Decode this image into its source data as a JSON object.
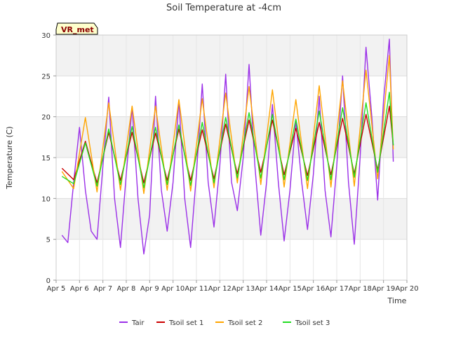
{
  "chart_data": {
    "type": "line",
    "title": "Soil Temperature at -4cm",
    "xlabel": "Time",
    "ylabel": "Temperature (C)",
    "ylim": [
      0,
      30
    ],
    "xlim": [
      "2024-04-05",
      "2024-04-20"
    ],
    "y_ticks": [
      0,
      5,
      10,
      15,
      20,
      25,
      30
    ],
    "x_ticks": [
      "Apr 5",
      "Apr 6",
      "Apr 7",
      "Apr 8",
      "Apr 9",
      "Apr 10",
      "Apr 11",
      "Apr 12",
      "Apr 13",
      "Apr 14",
      "Apr 15",
      "Apr 16",
      "Apr 17",
      "Apr 18",
      "Apr 19",
      "Apr 20"
    ],
    "grid": true,
    "legend_position": "bottom",
    "annotation": "VR_met",
    "series": [
      {
        "name": "Tair",
        "color": "#9b30e8",
        "x": [
          "2024-04-05T06:00",
          "2024-04-05T12:00",
          "2024-04-05T18:00",
          "2024-04-06T00:00",
          "2024-04-06T06:00",
          "2024-04-06T12:00",
          "2024-04-06T18:00",
          "2024-04-07T00:00",
          "2024-04-07T06:00",
          "2024-04-07T12:00",
          "2024-04-07T18:00",
          "2024-04-08T00:00",
          "2024-04-08T06:00",
          "2024-04-08T12:00",
          "2024-04-08T18:00",
          "2024-04-09T00:00",
          "2024-04-09T06:00",
          "2024-04-09T12:00",
          "2024-04-09T18:00",
          "2024-04-10T00:00",
          "2024-04-10T06:00",
          "2024-04-10T12:00",
          "2024-04-10T18:00",
          "2024-04-11T00:00",
          "2024-04-11T06:00",
          "2024-04-11T12:00",
          "2024-04-11T18:00",
          "2024-04-12T00:00",
          "2024-04-12T06:00",
          "2024-04-12T12:00",
          "2024-04-12T18:00",
          "2024-04-13T00:00",
          "2024-04-13T06:00",
          "2024-04-13T12:00",
          "2024-04-13T18:00",
          "2024-04-14T00:00",
          "2024-04-14T06:00",
          "2024-04-14T12:00",
          "2024-04-14T18:00",
          "2024-04-15T00:00",
          "2024-04-15T06:00",
          "2024-04-15T12:00",
          "2024-04-15T18:00",
          "2024-04-16T00:00",
          "2024-04-16T06:00",
          "2024-04-16T12:00",
          "2024-04-16T18:00",
          "2024-04-17T00:00",
          "2024-04-17T06:00",
          "2024-04-17T12:00",
          "2024-04-17T18:00",
          "2024-04-18T00:00",
          "2024-04-18T06:00",
          "2024-04-18T12:00",
          "2024-04-18T18:00",
          "2024-04-19T00:00",
          "2024-04-19T06:00",
          "2024-04-19T10:00"
        ],
        "values": [
          5.5,
          4.6,
          12.0,
          18.7,
          11.0,
          6.0,
          5.0,
          14.0,
          22.4,
          10.0,
          4.0,
          13.0,
          21.2,
          10.0,
          3.2,
          8.0,
          22.5,
          11.0,
          6.0,
          12.0,
          22.0,
          10.0,
          4.0,
          13.0,
          24.0,
          12.0,
          6.5,
          14.0,
          25.2,
          12.0,
          8.5,
          15.0,
          26.4,
          14.0,
          5.5,
          12.0,
          21.5,
          12.0,
          4.8,
          11.0,
          19.5,
          12.0,
          6.2,
          13.0,
          22.5,
          11.0,
          5.3,
          14.0,
          25.0,
          12.0,
          4.4,
          15.0,
          28.5,
          20.0,
          9.8,
          22.0,
          29.5,
          14.5
        ]
      },
      {
        "name": "Tsoil set 1",
        "color": "#cc0000",
        "x": [
          "2024-04-05T06:00",
          "2024-04-05T18:00",
          "2024-04-06T06:00",
          "2024-04-06T18:00",
          "2024-04-07T06:00",
          "2024-04-07T18:00",
          "2024-04-08T06:00",
          "2024-04-08T18:00",
          "2024-04-09T06:00",
          "2024-04-09T18:00",
          "2024-04-10T06:00",
          "2024-04-10T18:00",
          "2024-04-11T06:00",
          "2024-04-11T18:00",
          "2024-04-12T06:00",
          "2024-04-12T18:00",
          "2024-04-13T06:00",
          "2024-04-13T18:00",
          "2024-04-14T06:00",
          "2024-04-14T18:00",
          "2024-04-15T06:00",
          "2024-04-15T18:00",
          "2024-04-16T06:00",
          "2024-04-16T18:00",
          "2024-04-17T06:00",
          "2024-04-17T18:00",
          "2024-04-18T06:00",
          "2024-04-18T18:00",
          "2024-04-19T06:00",
          "2024-04-19T10:00"
        ],
        "values": [
          13.7,
          12.3,
          17.0,
          11.9,
          18.1,
          12.2,
          18.1,
          11.9,
          18.0,
          12.2,
          18.5,
          12.2,
          18.4,
          12.4,
          19.1,
          13.0,
          19.6,
          13.2,
          19.6,
          12.9,
          18.6,
          12.8,
          19.3,
          12.9,
          19.8,
          13.0,
          20.3,
          13.5,
          21.3,
          16.5
        ]
      },
      {
        "name": "Tsoil set 2",
        "color": "#ffa500",
        "x": [
          "2024-04-05T06:00",
          "2024-04-05T18:00",
          "2024-04-06T06:00",
          "2024-04-06T18:00",
          "2024-04-07T06:00",
          "2024-04-07T18:00",
          "2024-04-08T06:00",
          "2024-04-08T18:00",
          "2024-04-09T06:00",
          "2024-04-09T18:00",
          "2024-04-10T06:00",
          "2024-04-10T18:00",
          "2024-04-11T06:00",
          "2024-04-11T18:00",
          "2024-04-12T06:00",
          "2024-04-12T18:00",
          "2024-04-13T06:00",
          "2024-04-13T18:00",
          "2024-04-14T06:00",
          "2024-04-14T18:00",
          "2024-04-15T06:00",
          "2024-04-15T18:00",
          "2024-04-16T06:00",
          "2024-04-16T18:00",
          "2024-04-17T06:00",
          "2024-04-17T18:00",
          "2024-04-18T06:00",
          "2024-04-18T18:00",
          "2024-04-19T06:00",
          "2024-04-19T10:00"
        ],
        "values": [
          13.3,
          11.2,
          19.9,
          10.8,
          21.7,
          11.0,
          21.3,
          10.6,
          21.3,
          11.0,
          22.1,
          10.9,
          22.2,
          11.3,
          22.9,
          11.9,
          23.7,
          11.7,
          23.3,
          11.4,
          22.1,
          11.2,
          23.8,
          11.4,
          24.4,
          11.5,
          25.7,
          12.4,
          27.5,
          16.0
        ]
      },
      {
        "name": "Tsoil set 3",
        "color": "#22dd22",
        "x": [
          "2024-04-05T06:00",
          "2024-04-05T18:00",
          "2024-04-06T06:00",
          "2024-04-06T18:00",
          "2024-04-07T06:00",
          "2024-04-07T18:00",
          "2024-04-08T06:00",
          "2024-04-08T18:00",
          "2024-04-09T06:00",
          "2024-04-09T18:00",
          "2024-04-10T06:00",
          "2024-04-10T18:00",
          "2024-04-11T06:00",
          "2024-04-11T18:00",
          "2024-04-12T06:00",
          "2024-04-12T18:00",
          "2024-04-13T06:00",
          "2024-04-13T18:00",
          "2024-04-14T06:00",
          "2024-04-14T18:00",
          "2024-04-15T06:00",
          "2024-04-15T18:00",
          "2024-04-16T06:00",
          "2024-04-16T18:00",
          "2024-04-17T06:00",
          "2024-04-17T18:00",
          "2024-04-18T06:00",
          "2024-04-18T18:00",
          "2024-04-19T06:00",
          "2024-04-19T10:00"
        ],
        "values": [
          12.7,
          11.8,
          16.8,
          11.5,
          18.5,
          11.7,
          18.8,
          11.3,
          18.7,
          11.7,
          19.0,
          11.6,
          19.3,
          11.9,
          19.9,
          12.5,
          20.5,
          12.5,
          20.3,
          12.3,
          19.7,
          12.2,
          20.7,
          12.3,
          21.1,
          12.6,
          21.7,
          13.2,
          23.0,
          16.5
        ]
      }
    ]
  }
}
